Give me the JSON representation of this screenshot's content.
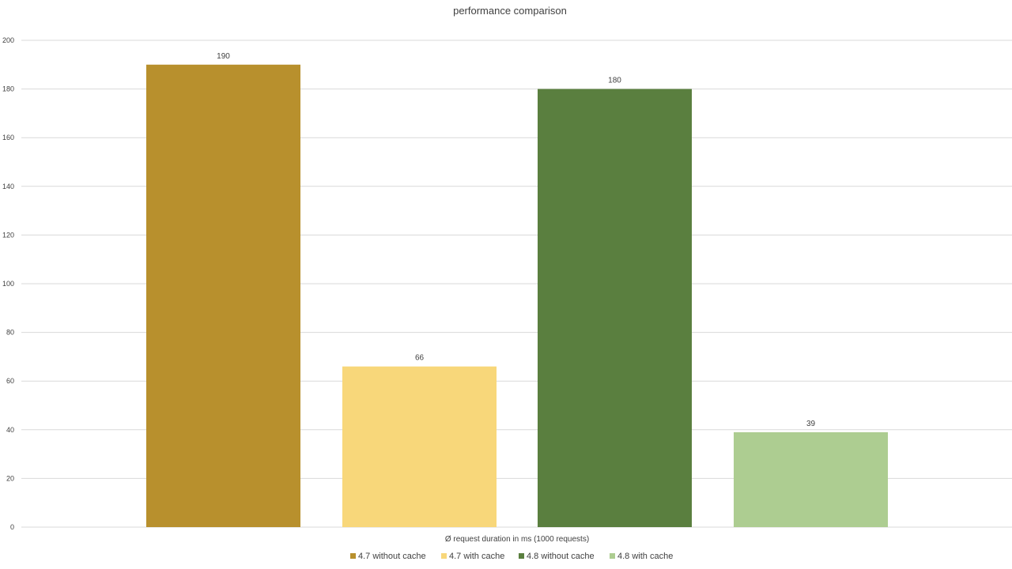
{
  "chart_data": {
    "type": "bar",
    "title": "performance comparison",
    "xlabel": "Ø request duration in ms (1000 requests)",
    "ylabel": "",
    "ylim": [
      0,
      200
    ],
    "yticks": [
      0,
      20,
      40,
      60,
      80,
      100,
      120,
      140,
      160,
      180,
      200
    ],
    "grid": true,
    "legend_position": "bottom",
    "series": [
      {
        "name": "4.7 without cache",
        "value": 190,
        "color": "#B8902D"
      },
      {
        "name": "4.7 with cache",
        "value": 66,
        "color": "#F8D77A"
      },
      {
        "name": "4.8 without cache",
        "value": 180,
        "color": "#5A7F3F"
      },
      {
        "name": "4.8 with cache",
        "value": 39,
        "color": "#ADCD91"
      }
    ]
  }
}
